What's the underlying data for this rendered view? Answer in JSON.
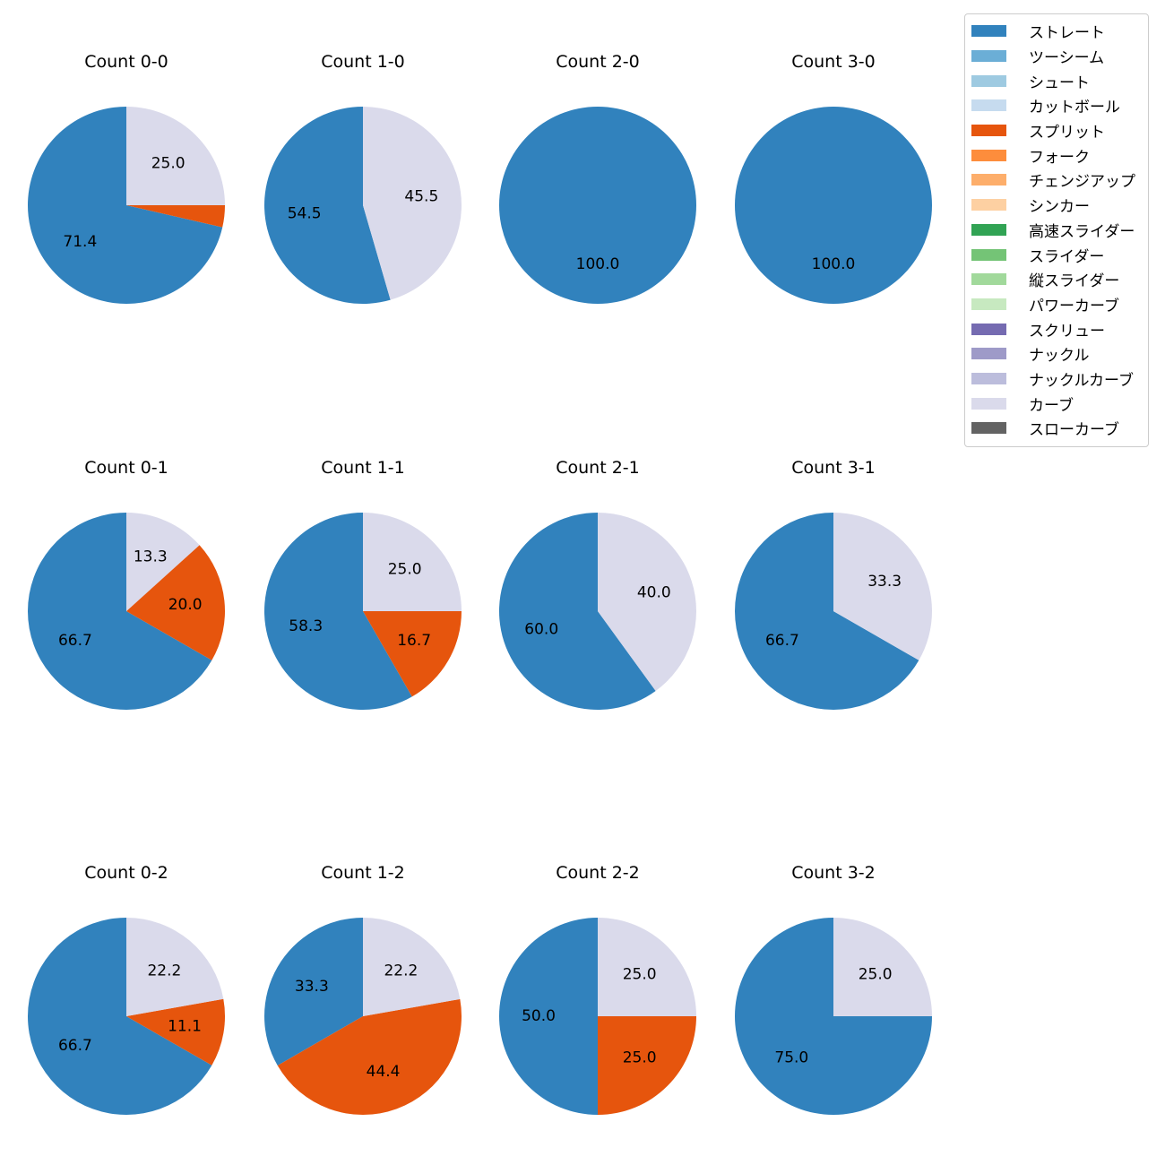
{
  "chart_data": {
    "type": "pie",
    "layout": "grid 3 rows x 4 columns",
    "legend_position": "top-right",
    "legend": [
      {
        "name": "ストレート",
        "color": "#3182bd"
      },
      {
        "name": "ツーシーム",
        "color": "#6baed6"
      },
      {
        "name": "シュート",
        "color": "#9ecae1"
      },
      {
        "name": "カットボール",
        "color": "#c6dbef"
      },
      {
        "name": "スプリット",
        "color": "#e6550d"
      },
      {
        "name": "フォーク",
        "color": "#fd8d3c"
      },
      {
        "name": "チェンジアップ",
        "color": "#fdae6b"
      },
      {
        "name": "シンカー",
        "color": "#fdd0a2"
      },
      {
        "name": "高速スライダー",
        "color": "#31a354"
      },
      {
        "name": "スライダー",
        "color": "#74c476"
      },
      {
        "name": "縦スライダー",
        "color": "#a1d99b"
      },
      {
        "name": "パワーカーブ",
        "color": "#c7e9c0"
      },
      {
        "name": "スクリュー",
        "color": "#756bb1"
      },
      {
        "name": "ナックル",
        "color": "#9e9ac8"
      },
      {
        "name": "ナックルカーブ",
        "color": "#bcbddc"
      },
      {
        "name": "カーブ",
        "color": "#dadaeb"
      },
      {
        "name": "スローカーブ",
        "color": "#636363"
      }
    ],
    "charts": [
      {
        "title": "Count 0-0",
        "slices": [
          {
            "pitch": "ストレート",
            "value": 71.4,
            "label": "71.4"
          },
          {
            "pitch": "スプリット",
            "value": 3.6,
            "label": ""
          },
          {
            "pitch": "カーブ",
            "value": 25.0,
            "label": "25.0"
          }
        ]
      },
      {
        "title": "Count 1-0",
        "slices": [
          {
            "pitch": "ストレート",
            "value": 54.5,
            "label": "54.5"
          },
          {
            "pitch": "カーブ",
            "value": 45.5,
            "label": "45.5"
          }
        ]
      },
      {
        "title": "Count 2-0",
        "slices": [
          {
            "pitch": "ストレート",
            "value": 100.0,
            "label": "100.0"
          }
        ]
      },
      {
        "title": "Count 3-0",
        "slices": [
          {
            "pitch": "ストレート",
            "value": 100.0,
            "label": "100.0"
          }
        ]
      },
      {
        "title": "Count 0-1",
        "slices": [
          {
            "pitch": "ストレート",
            "value": 66.7,
            "label": "66.7"
          },
          {
            "pitch": "スプリット",
            "value": 20.0,
            "label": "20.0"
          },
          {
            "pitch": "カーブ",
            "value": 13.3,
            "label": "13.3"
          }
        ]
      },
      {
        "title": "Count 1-1",
        "slices": [
          {
            "pitch": "ストレート",
            "value": 58.3,
            "label": "58.3"
          },
          {
            "pitch": "スプリット",
            "value": 16.7,
            "label": "16.7"
          },
          {
            "pitch": "カーブ",
            "value": 25.0,
            "label": "25.0"
          }
        ]
      },
      {
        "title": "Count 2-1",
        "slices": [
          {
            "pitch": "ストレート",
            "value": 60.0,
            "label": "60.0"
          },
          {
            "pitch": "カーブ",
            "value": 40.0,
            "label": "40.0"
          }
        ]
      },
      {
        "title": "Count 3-1",
        "slices": [
          {
            "pitch": "ストレート",
            "value": 66.7,
            "label": "66.7"
          },
          {
            "pitch": "カーブ",
            "value": 33.3,
            "label": "33.3"
          }
        ]
      },
      {
        "title": "Count 0-2",
        "slices": [
          {
            "pitch": "ストレート",
            "value": 66.7,
            "label": "66.7"
          },
          {
            "pitch": "スプリット",
            "value": 11.1,
            "label": "11.1"
          },
          {
            "pitch": "カーブ",
            "value": 22.2,
            "label": "22.2"
          }
        ]
      },
      {
        "title": "Count 1-2",
        "slices": [
          {
            "pitch": "ストレート",
            "value": 33.3,
            "label": "33.3"
          },
          {
            "pitch": "スプリット",
            "value": 44.4,
            "label": "44.4"
          },
          {
            "pitch": "カーブ",
            "value": 22.2,
            "label": "22.2"
          }
        ]
      },
      {
        "title": "Count 2-2",
        "slices": [
          {
            "pitch": "ストレート",
            "value": 50.0,
            "label": "50.0"
          },
          {
            "pitch": "スプリット",
            "value": 25.0,
            "label": "25.0"
          },
          {
            "pitch": "カーブ",
            "value": 25.0,
            "label": "25.0"
          }
        ]
      },
      {
        "title": "Count 3-2",
        "slices": [
          {
            "pitch": "ストレート",
            "value": 75.0,
            "label": "75.0"
          },
          {
            "pitch": "カーブ",
            "value": 25.0,
            "label": "25.0"
          }
        ]
      }
    ]
  }
}
